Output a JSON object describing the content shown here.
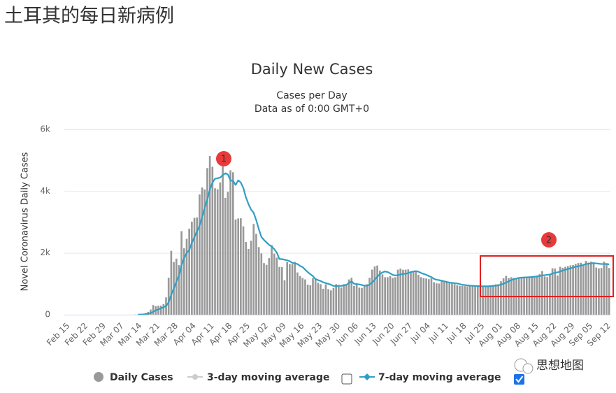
{
  "heading": "土耳其的每日新病例",
  "watermark": "思想地图",
  "chart_data": {
    "type": "bar",
    "title": "Daily New Cases",
    "subtitle": [
      "Cases per Day",
      "Data as of 0:00 GMT+0"
    ],
    "y_label": "Novel Coronavirus Daily Cases",
    "annotations": [
      "1",
      "2"
    ],
    "ylim": [
      0,
      6000
    ],
    "yticks": [
      0,
      {
        "value": 2000,
        "label": "2k"
      },
      {
        "value": 4000,
        "label": "4k"
      },
      {
        "value": 6000,
        "label": "6k"
      }
    ],
    "grid": true,
    "categories": [
      "Feb 15",
      null,
      null,
      null,
      null,
      null,
      null,
      "Feb 22",
      null,
      null,
      null,
      null,
      null,
      null,
      "Feb 29",
      null,
      null,
      null,
      null,
      null,
      null,
      "Mar 07",
      null,
      null,
      null,
      null,
      null,
      null,
      "Mar 14",
      null,
      null,
      null,
      null,
      null,
      null,
      "Mar 21",
      null,
      null,
      null,
      null,
      null,
      null,
      "Mar 28",
      null,
      null,
      null,
      null,
      null,
      null,
      "Apr 04",
      null,
      null,
      null,
      null,
      null,
      null,
      "Apr 11",
      null,
      null,
      null,
      null,
      null,
      null,
      "Apr 18",
      null,
      null,
      null,
      null,
      null,
      null,
      "Apr 25",
      null,
      null,
      null,
      null,
      null,
      null,
      "May 02",
      null,
      null,
      null,
      null,
      null,
      null,
      "May 09",
      null,
      null,
      null,
      null,
      null,
      null,
      "May 16",
      null,
      null,
      null,
      null,
      null,
      null,
      "May 23",
      null,
      null,
      null,
      null,
      null,
      null,
      "May 30",
      null,
      null,
      null,
      null,
      null,
      null,
      "Jun 06",
      null,
      null,
      null,
      null,
      null,
      null,
      "Jun 13",
      null,
      null,
      null,
      null,
      null,
      null,
      "Jun 20",
      null,
      null,
      null,
      null,
      null,
      null,
      "Jun 27",
      null,
      null,
      null,
      null,
      null,
      null,
      "Jul 04",
      null,
      null,
      null,
      null,
      null,
      null,
      "Jul 11",
      null,
      null,
      null,
      null,
      null,
      null,
      "Jul 18",
      null,
      null,
      null,
      null,
      null,
      null,
      "Jul 25",
      null,
      null,
      null,
      null,
      null,
      null,
      "Aug 01",
      null,
      null,
      null,
      null,
      null,
      null,
      "Aug 08",
      null,
      null,
      null,
      null,
      null,
      null,
      "Aug 15",
      null,
      null,
      null,
      null,
      null,
      null,
      "Aug 22",
      null,
      null,
      null,
      null,
      null,
      null,
      "Aug 29",
      null,
      null,
      null,
      null,
      null,
      null,
      "Sep 05",
      null,
      null,
      null,
      null,
      null,
      null,
      "Sep 12",
      null
    ],
    "series": [
      {
        "name": "Daily Cases",
        "type": "bar",
        "color": "#999999",
        "values": [
          0,
          0,
          0,
          0,
          0,
          0,
          0,
          0,
          0,
          0,
          0,
          0,
          0,
          0,
          0,
          0,
          0,
          0,
          0,
          0,
          0,
          0,
          0,
          0,
          0,
          1,
          0,
          4,
          1,
          12,
          29,
          51,
          93,
          168,
          311,
          277,
          289,
          293,
          343,
          561,
          1196,
          2069,
          1704,
          1815,
          1610,
          2704,
          2148,
          2456,
          2786,
          3013,
          3135,
          3148,
          3892,
          4117,
          4056,
          4747,
          5138,
          4789,
          4093,
          4062,
          4281,
          4801,
          3783,
          3977,
          4674,
          4611,
          3083,
          3116,
          3122,
          2861,
          2357,
          2131,
          2392,
          2936,
          2615,
          2188,
          1983,
          1670,
          1614,
          1832,
          2253,
          1977,
          1848,
          1546,
          1542,
          1114,
          1704,
          1639,
          1635,
          1708,
          1368,
          1251,
          1186,
          1141,
          972,
          952,
          1182,
          1186,
          1035,
          987,
          839,
          983,
          827,
          786,
          867,
          989,
          930,
          878,
          988,
          987,
          1141,
          1195,
          930,
          989,
          876,
          867,
          922,
          987,
          1195,
          1459,
          1562,
          1592,
          1429,
          1304,
          1212,
          1214,
          1248,
          1192,
          1212,
          1458,
          1492,
          1454,
          1458,
          1466,
          1374,
          1396,
          1428,
          1293,
          1214,
          1186,
          1172,
          1148,
          1182,
          1053,
          1016,
          1008,
          1086,
          1083,
          1061,
          1041,
          1008,
          992,
          950,
          933,
          935,
          926,
          919,
          927,
          934,
          937,
          913,
          909,
          911,
          916,
          927,
          941,
          963,
          982,
          987,
          1083,
          1178,
          1256,
          1182,
          1212,
          1185,
          1183,
          1192,
          1191,
          1226,
          1233,
          1234,
          1243,
          1256,
          1263,
          1312,
          1412,
          1239,
          1218,
          1297,
          1502,
          1494,
          1268,
          1549,
          1517,
          1549,
          1572,
          1596,
          1610,
          1643,
          1671,
          1680,
          1596,
          1742,
          1688,
          1716,
          1690,
          1527,
          1500,
          1512,
          1716,
          1671,
          1512
        ]
      },
      {
        "name": "7-day moving average",
        "type": "line",
        "color": "#2f9fc4",
        "values": [
          null,
          null,
          null,
          null,
          null,
          null,
          null,
          null,
          null,
          null,
          null,
          null,
          null,
          null,
          null,
          null,
          null,
          null,
          null,
          null,
          null,
          null,
          null,
          null,
          null,
          null,
          null,
          null,
          3,
          5,
          9,
          16,
          29,
          52,
          95,
          140,
          170,
          205,
          240,
          280,
          400,
          650,
          850,
          1070,
          1260,
          1600,
          1830,
          2000,
          2090,
          2330,
          2510,
          2700,
          2880,
          3160,
          3450,
          3730,
          4050,
          4280,
          4400,
          4420,
          4440,
          4520,
          4580,
          4540,
          4350,
          4330,
          4200,
          4350,
          4280,
          4100,
          3800,
          3580,
          3400,
          3300,
          3060,
          2770,
          2520,
          2420,
          2340,
          2260,
          2210,
          2120,
          2010,
          1800,
          1800,
          1780,
          1760,
          1730,
          1680,
          1660,
          1640,
          1580,
          1540,
          1460,
          1380,
          1310,
          1250,
          1150,
          1120,
          1090,
          1050,
          1020,
          1000,
          970,
          930,
          920,
          940,
          930,
          950,
          970,
          1020,
          1080,
          1000,
          990,
          980,
          960,
          940,
          940,
          970,
          1040,
          1130,
          1230,
          1310,
          1370,
          1400,
          1380,
          1340,
          1290,
          1270,
          1280,
          1300,
          1320,
          1320,
          1350,
          1380,
          1400,
          1410,
          1390,
          1350,
          1320,
          1290,
          1250,
          1220,
          1160,
          1130,
          1120,
          1100,
          1080,
          1060,
          1040,
          1030,
          1020,
          1010,
          990,
          970,
          960,
          950,
          940,
          935,
          930,
          925,
          920,
          920,
          920,
          920,
          925,
          930,
          940,
          950,
          975,
          1000,
          1040,
          1080,
          1120,
          1150,
          1170,
          1190,
          1200,
          1205,
          1210,
          1215,
          1220,
          1230,
          1240,
          1250,
          1270,
          1280,
          1290,
          1300,
          1330,
          1360,
          1370,
          1400,
          1430,
          1450,
          1480,
          1500,
          1530,
          1550,
          1570,
          1590,
          1610,
          1640,
          1650,
          1660,
          1670,
          1660,
          1650,
          1640,
          1640,
          1640,
          1630
        ]
      }
    ],
    "hidden_series": [
      {
        "name": "3-day moving average",
        "color": "#cccccc"
      }
    ]
  }
}
